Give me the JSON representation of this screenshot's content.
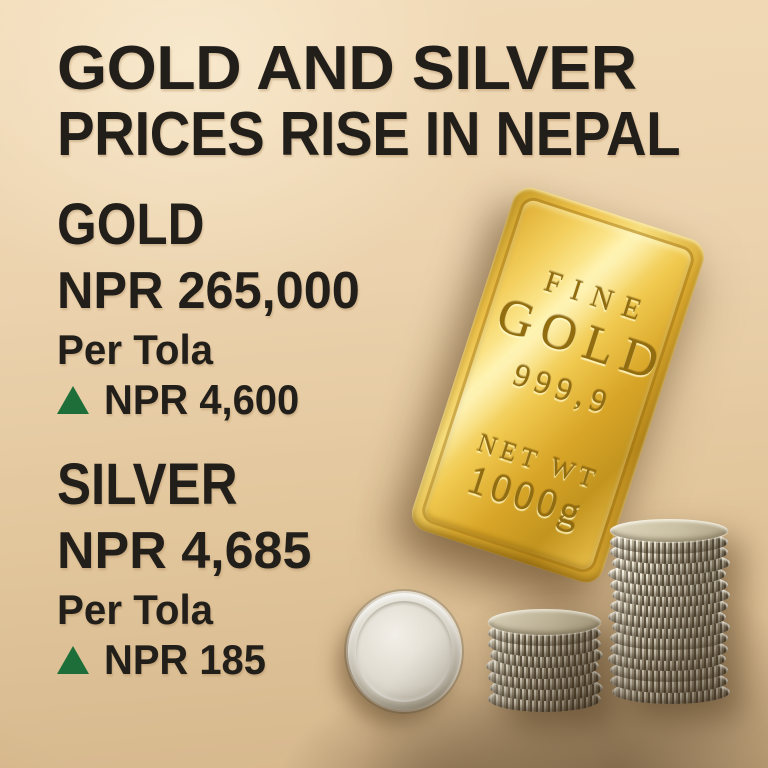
{
  "title": {
    "line1": "GOLD AND SILVER",
    "line2": "PRICES RISE IN NEPAL"
  },
  "gold": {
    "heading": "GOLD",
    "price": "NPR 265,000",
    "unit": "Per Tola",
    "change": "NPR 4,600",
    "change_direction": "up"
  },
  "silver": {
    "heading": "SILVER",
    "price": "NPR 4,685",
    "unit": "Per Tola",
    "change": "NPR 185",
    "change_direction": "up"
  },
  "gold_bar": {
    "fine_label": "FINE",
    "metal_label": "GOLD",
    "purity": "999,9",
    "net_wt_label": "NET WT",
    "weight": "1000g"
  },
  "illustration": {
    "single_coin_count": 1,
    "short_stack_coins": 8,
    "tall_stack_coins": 16
  },
  "colors": {
    "background_top": "#f1dab7",
    "background_bottom": "#d6b78c",
    "headline_text": "#221f1b",
    "up_green": "#1d6e38",
    "gold_bar": "#e9bf45",
    "silver_coin": "#d9d4c6"
  }
}
